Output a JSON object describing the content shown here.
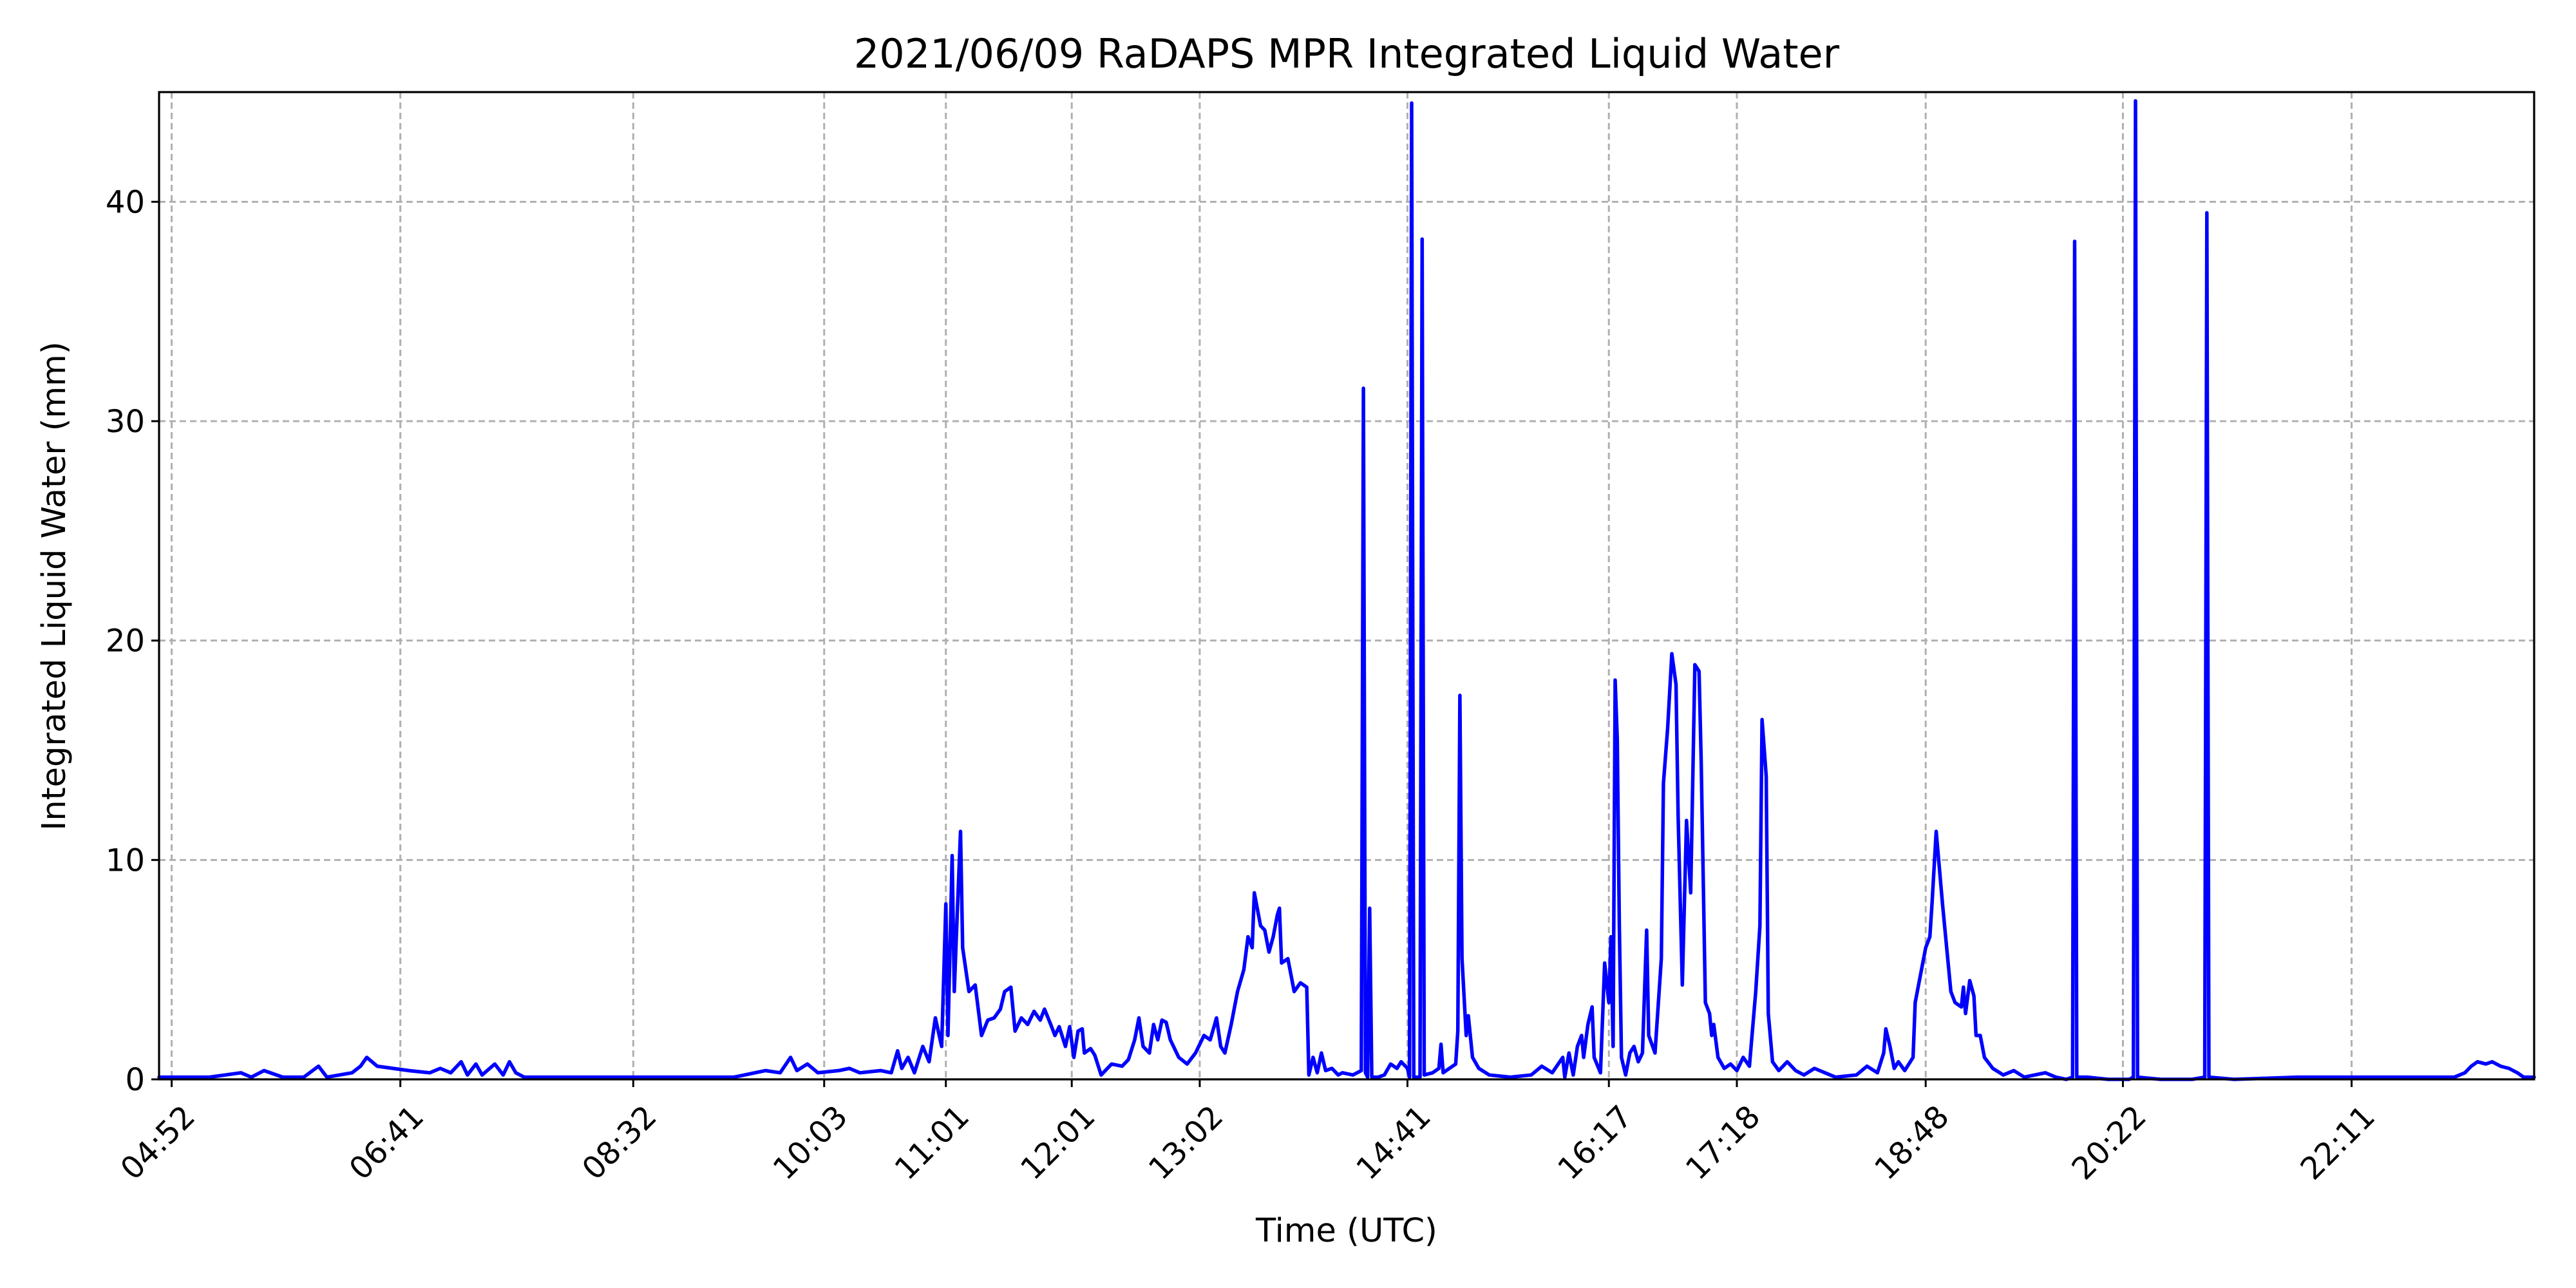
{
  "chart_data": {
    "type": "line",
    "title": "2021/06/09 RaDAPS MPR Integrated Liquid Water",
    "xlabel": "Time (UTC)",
    "ylabel": "Integrated Liquid Water (mm)",
    "xlim": [
      "04:46",
      "23:38"
    ],
    "ylim": [
      0,
      45
    ],
    "grid": true,
    "x_ticks": [
      "04:52",
      "06:41",
      "08:32",
      "10:03",
      "11:01",
      "12:01",
      "13:02",
      "14:41",
      "16:17",
      "17:18",
      "18:48",
      "20:22",
      "22:11"
    ],
    "y_ticks": [
      0,
      10,
      20,
      30,
      40
    ],
    "series": [
      {
        "color": "#0000ff",
        "points": [
          [
            "04:46",
            0.1
          ],
          [
            "05:10",
            0.1
          ],
          [
            "05:25",
            0.3
          ],
          [
            "05:30",
            0.1
          ],
          [
            "05:36",
            0.4
          ],
          [
            "05:45",
            0.1
          ],
          [
            "05:55",
            0.1
          ],
          [
            "06:02",
            0.6
          ],
          [
            "06:06",
            0.1
          ],
          [
            "06:18",
            0.3
          ],
          [
            "06:22",
            0.6
          ],
          [
            "06:25",
            1.0
          ],
          [
            "06:30",
            0.6
          ],
          [
            "06:45",
            0.4
          ],
          [
            "06:55",
            0.3
          ],
          [
            "07:00",
            0.5
          ],
          [
            "07:05",
            0.3
          ],
          [
            "07:10",
            0.8
          ],
          [
            "07:13",
            0.2
          ],
          [
            "07:17",
            0.7
          ],
          [
            "07:20",
            0.2
          ],
          [
            "07:26",
            0.7
          ],
          [
            "07:30",
            0.2
          ],
          [
            "07:33",
            0.8
          ],
          [
            "07:36",
            0.3
          ],
          [
            "07:40",
            0.1
          ],
          [
            "08:00",
            0.1
          ],
          [
            "08:30",
            0.1
          ],
          [
            "09:00",
            0.1
          ],
          [
            "09:20",
            0.1
          ],
          [
            "09:35",
            0.4
          ],
          [
            "09:42",
            0.3
          ],
          [
            "09:47",
            1.0
          ],
          [
            "09:50",
            0.4
          ],
          [
            "09:55",
            0.7
          ],
          [
            "10:00",
            0.3
          ],
          [
            "10:10",
            0.4
          ],
          [
            "10:15",
            0.5
          ],
          [
            "10:20",
            0.3
          ],
          [
            "10:30",
            0.4
          ],
          [
            "10:35",
            0.3
          ],
          [
            "10:38",
            1.3
          ],
          [
            "10:40",
            0.5
          ],
          [
            "10:43",
            1.0
          ],
          [
            "10:46",
            0.3
          ],
          [
            "10:50",
            1.5
          ],
          [
            "10:53",
            0.8
          ],
          [
            "10:56",
            2.8
          ],
          [
            "10:59",
            1.5
          ],
          [
            "11:01",
            8.0
          ],
          [
            "11:02",
            2.0
          ],
          [
            "11:04",
            10.2
          ],
          [
            "11:05",
            4.0
          ],
          [
            "11:06",
            6.5
          ],
          [
            "11:08",
            11.3
          ],
          [
            "11:09",
            6.0
          ],
          [
            "11:12",
            4.0
          ],
          [
            "11:15",
            4.3
          ],
          [
            "11:18",
            2.0
          ],
          [
            "11:21",
            2.7
          ],
          [
            "11:24",
            2.8
          ],
          [
            "11:27",
            3.2
          ],
          [
            "11:29",
            4.0
          ],
          [
            "11:32",
            4.2
          ],
          [
            "11:34",
            2.2
          ],
          [
            "11:37",
            2.8
          ],
          [
            "11:40",
            2.5
          ],
          [
            "11:43",
            3.1
          ],
          [
            "11:46",
            2.7
          ],
          [
            "11:48",
            3.2
          ],
          [
            "11:51",
            2.5
          ],
          [
            "11:53",
            2.0
          ],
          [
            "11:55",
            2.4
          ],
          [
            "11:58",
            1.5
          ],
          [
            "12:00",
            2.4
          ],
          [
            "12:02",
            1.0
          ],
          [
            "12:04",
            2.2
          ],
          [
            "12:06",
            2.3
          ],
          [
            "12:07",
            1.2
          ],
          [
            "12:10",
            1.4
          ],
          [
            "12:12",
            1.1
          ],
          [
            "12:15",
            0.2
          ],
          [
            "12:20",
            0.7
          ],
          [
            "12:25",
            0.6
          ],
          [
            "12:28",
            0.9
          ],
          [
            "12:31",
            1.8
          ],
          [
            "12:33",
            2.8
          ],
          [
            "12:35",
            1.5
          ],
          [
            "12:38",
            1.2
          ],
          [
            "12:40",
            2.5
          ],
          [
            "12:42",
            1.8
          ],
          [
            "12:44",
            2.7
          ],
          [
            "12:46",
            2.6
          ],
          [
            "12:48",
            1.8
          ],
          [
            "12:52",
            1.0
          ],
          [
            "12:56",
            0.7
          ],
          [
            "13:00",
            1.2
          ],
          [
            "13:04",
            2.0
          ],
          [
            "13:07",
            1.8
          ],
          [
            "13:10",
            2.8
          ],
          [
            "13:12",
            1.5
          ],
          [
            "13:14",
            1.2
          ],
          [
            "13:17",
            2.5
          ],
          [
            "13:20",
            4.0
          ],
          [
            "13:23",
            5.0
          ],
          [
            "13:25",
            6.5
          ],
          [
            "13:27",
            6.0
          ],
          [
            "13:28",
            8.5
          ],
          [
            "13:31",
            7.0
          ],
          [
            "13:33",
            6.8
          ],
          [
            "13:35",
            5.8
          ],
          [
            "13:37",
            6.5
          ],
          [
            "13:39",
            7.5
          ],
          [
            "13:40",
            7.8
          ],
          [
            "13:41",
            5.3
          ],
          [
            "13:44",
            5.5
          ],
          [
            "13:47",
            4.0
          ],
          [
            "13:50",
            4.4
          ],
          [
            "13:53",
            4.2
          ],
          [
            "13:54",
            0.2
          ],
          [
            "13:56",
            1.0
          ],
          [
            "13:58",
            0.3
          ],
          [
            "14:00",
            1.2
          ],
          [
            "14:02",
            0.4
          ],
          [
            "14:05",
            0.5
          ],
          [
            "14:08",
            0.2
          ],
          [
            "14:10",
            0.3
          ],
          [
            "14:15",
            0.2
          ],
          [
            "14:19",
            0.4
          ],
          [
            "14:20",
            31.5
          ],
          [
            "14:21",
            0.3
          ],
          [
            "14:22",
            0.1
          ],
          [
            "14:23",
            7.8
          ],
          [
            "14:24",
            0.1
          ],
          [
            "14:27",
            0.1
          ],
          [
            "14:30",
            0.2
          ],
          [
            "14:33",
            0.7
          ],
          [
            "14:36",
            0.5
          ],
          [
            "14:38",
            0.8
          ],
          [
            "14:41",
            0.5
          ],
          [
            "14:42",
            0.1
          ],
          [
            "14:43",
            44.5
          ],
          [
            "14:44",
            0.1
          ],
          [
            "14:47",
            0.1
          ],
          [
            "14:48",
            38.3
          ],
          [
            "14:49",
            0.2
          ],
          [
            "14:53",
            0.3
          ],
          [
            "14:56",
            0.5
          ],
          [
            "14:57",
            1.6
          ],
          [
            "14:58",
            0.3
          ],
          [
            "15:01",
            0.5
          ],
          [
            "15:04",
            0.7
          ],
          [
            "15:05",
            2.2
          ],
          [
            "15:06",
            17.5
          ],
          [
            "15:07",
            5.5
          ],
          [
            "15:09",
            2.0
          ],
          [
            "15:10",
            2.9
          ],
          [
            "15:12",
            1.0
          ],
          [
            "15:15",
            0.5
          ],
          [
            "15:20",
            0.2
          ],
          [
            "15:30",
            0.1
          ],
          [
            "15:40",
            0.2
          ],
          [
            "15:45",
            0.6
          ],
          [
            "15:50",
            0.3
          ],
          [
            "15:55",
            1.0
          ],
          [
            "15:56",
            0.1
          ],
          [
            "15:58",
            1.2
          ],
          [
            "16:00",
            0.2
          ],
          [
            "16:02",
            1.5
          ],
          [
            "16:04",
            2.0
          ],
          [
            "16:05",
            1.0
          ],
          [
            "16:07",
            2.5
          ],
          [
            "16:09",
            3.3
          ],
          [
            "16:10",
            1.0
          ],
          [
            "16:13",
            0.3
          ],
          [
            "16:15",
            5.3
          ],
          [
            "16:17",
            3.5
          ],
          [
            "16:18",
            6.5
          ],
          [
            "16:19",
            1.5
          ],
          [
            "16:20",
            18.2
          ],
          [
            "16:21",
            15.5
          ],
          [
            "16:22",
            7.0
          ],
          [
            "16:23",
            1.0
          ],
          [
            "16:25",
            0.2
          ],
          [
            "16:27",
            1.2
          ],
          [
            "16:29",
            1.5
          ],
          [
            "16:31",
            0.8
          ],
          [
            "16:33",
            1.2
          ],
          [
            "16:35",
            6.8
          ],
          [
            "16:36",
            2.0
          ],
          [
            "16:39",
            1.2
          ],
          [
            "16:42",
            5.5
          ],
          [
            "16:43",
            13.5
          ],
          [
            "16:45",
            16.0
          ],
          [
            "16:47",
            19.4
          ],
          [
            "16:49",
            18.0
          ],
          [
            "16:50",
            12.0
          ],
          [
            "16:52",
            4.3
          ],
          [
            "16:54",
            11.8
          ],
          [
            "16:56",
            8.5
          ],
          [
            "16:58",
            18.9
          ],
          [
            "17:00",
            18.6
          ],
          [
            "17:01",
            14.5
          ],
          [
            "17:03",
            3.5
          ],
          [
            "17:05",
            3.0
          ],
          [
            "17:06",
            2.0
          ],
          [
            "17:07",
            2.5
          ],
          [
            "17:09",
            1.0
          ],
          [
            "17:12",
            0.5
          ],
          [
            "17:15",
            0.7
          ],
          [
            "17:18",
            0.4
          ],
          [
            "17:21",
            1.0
          ],
          [
            "17:24",
            0.6
          ],
          [
            "17:27",
            4.0
          ],
          [
            "17:29",
            7.0
          ],
          [
            "17:30",
            16.4
          ],
          [
            "17:32",
            13.8
          ],
          [
            "17:33",
            3.0
          ],
          [
            "17:35",
            0.8
          ],
          [
            "17:38",
            0.4
          ],
          [
            "17:42",
            0.8
          ],
          [
            "17:46",
            0.4
          ],
          [
            "17:50",
            0.2
          ],
          [
            "17:55",
            0.5
          ],
          [
            "18:00",
            0.3
          ],
          [
            "18:05",
            0.1
          ],
          [
            "18:15",
            0.2
          ],
          [
            "18:20",
            0.6
          ],
          [
            "18:25",
            0.3
          ],
          [
            "18:28",
            1.2
          ],
          [
            "18:29",
            2.3
          ],
          [
            "18:31",
            1.5
          ],
          [
            "18:33",
            0.5
          ],
          [
            "18:35",
            0.8
          ],
          [
            "18:38",
            0.4
          ],
          [
            "18:42",
            1.0
          ],
          [
            "18:43",
            3.5
          ],
          [
            "18:45",
            4.5
          ],
          [
            "18:48",
            6.0
          ],
          [
            "18:50",
            6.5
          ],
          [
            "18:51",
            8.0
          ],
          [
            "18:53",
            11.3
          ],
          [
            "18:56",
            8.0
          ],
          [
            "18:58",
            6.0
          ],
          [
            "19:00",
            4.0
          ],
          [
            "19:02",
            3.5
          ],
          [
            "19:05",
            3.3
          ],
          [
            "19:06",
            4.2
          ],
          [
            "19:07",
            3.0
          ],
          [
            "19:09",
            4.5
          ],
          [
            "19:11",
            3.8
          ],
          [
            "19:12",
            2.0
          ],
          [
            "19:14",
            2.0
          ],
          [
            "19:16",
            1.0
          ],
          [
            "19:20",
            0.5
          ],
          [
            "19:25",
            0.2
          ],
          [
            "19:30",
            0.4
          ],
          [
            "19:35",
            0.1
          ],
          [
            "19:40",
            0.2
          ],
          [
            "19:45",
            0.3
          ],
          [
            "19:50",
            0.1
          ],
          [
            "19:55",
            0.0
          ],
          [
            "19:58",
            0.1
          ],
          [
            "19:59",
            38.2
          ],
          [
            "20:00",
            0.1
          ],
          [
            "20:05",
            0.1
          ],
          [
            "20:15",
            0.0
          ],
          [
            "20:25",
            0.0
          ],
          [
            "20:27",
            0.1
          ],
          [
            "20:28",
            44.6
          ],
          [
            "20:29",
            0.1
          ],
          [
            "20:40",
            0.0
          ],
          [
            "20:55",
            0.0
          ],
          [
            "21:01",
            0.1
          ],
          [
            "21:02",
            39.5
          ],
          [
            "21:03",
            0.1
          ],
          [
            "21:15",
            0.0
          ],
          [
            "21:45",
            0.1
          ],
          [
            "22:15",
            0.1
          ],
          [
            "22:45",
            0.1
          ],
          [
            "23:00",
            0.1
          ],
          [
            "23:05",
            0.3
          ],
          [
            "23:08",
            0.6
          ],
          [
            "23:11",
            0.8
          ],
          [
            "23:15",
            0.7
          ],
          [
            "23:18",
            0.8
          ],
          [
            "23:22",
            0.6
          ],
          [
            "23:26",
            0.5
          ],
          [
            "23:30",
            0.3
          ],
          [
            "23:33",
            0.1
          ],
          [
            "23:38",
            0.1
          ]
        ]
      }
    ]
  }
}
